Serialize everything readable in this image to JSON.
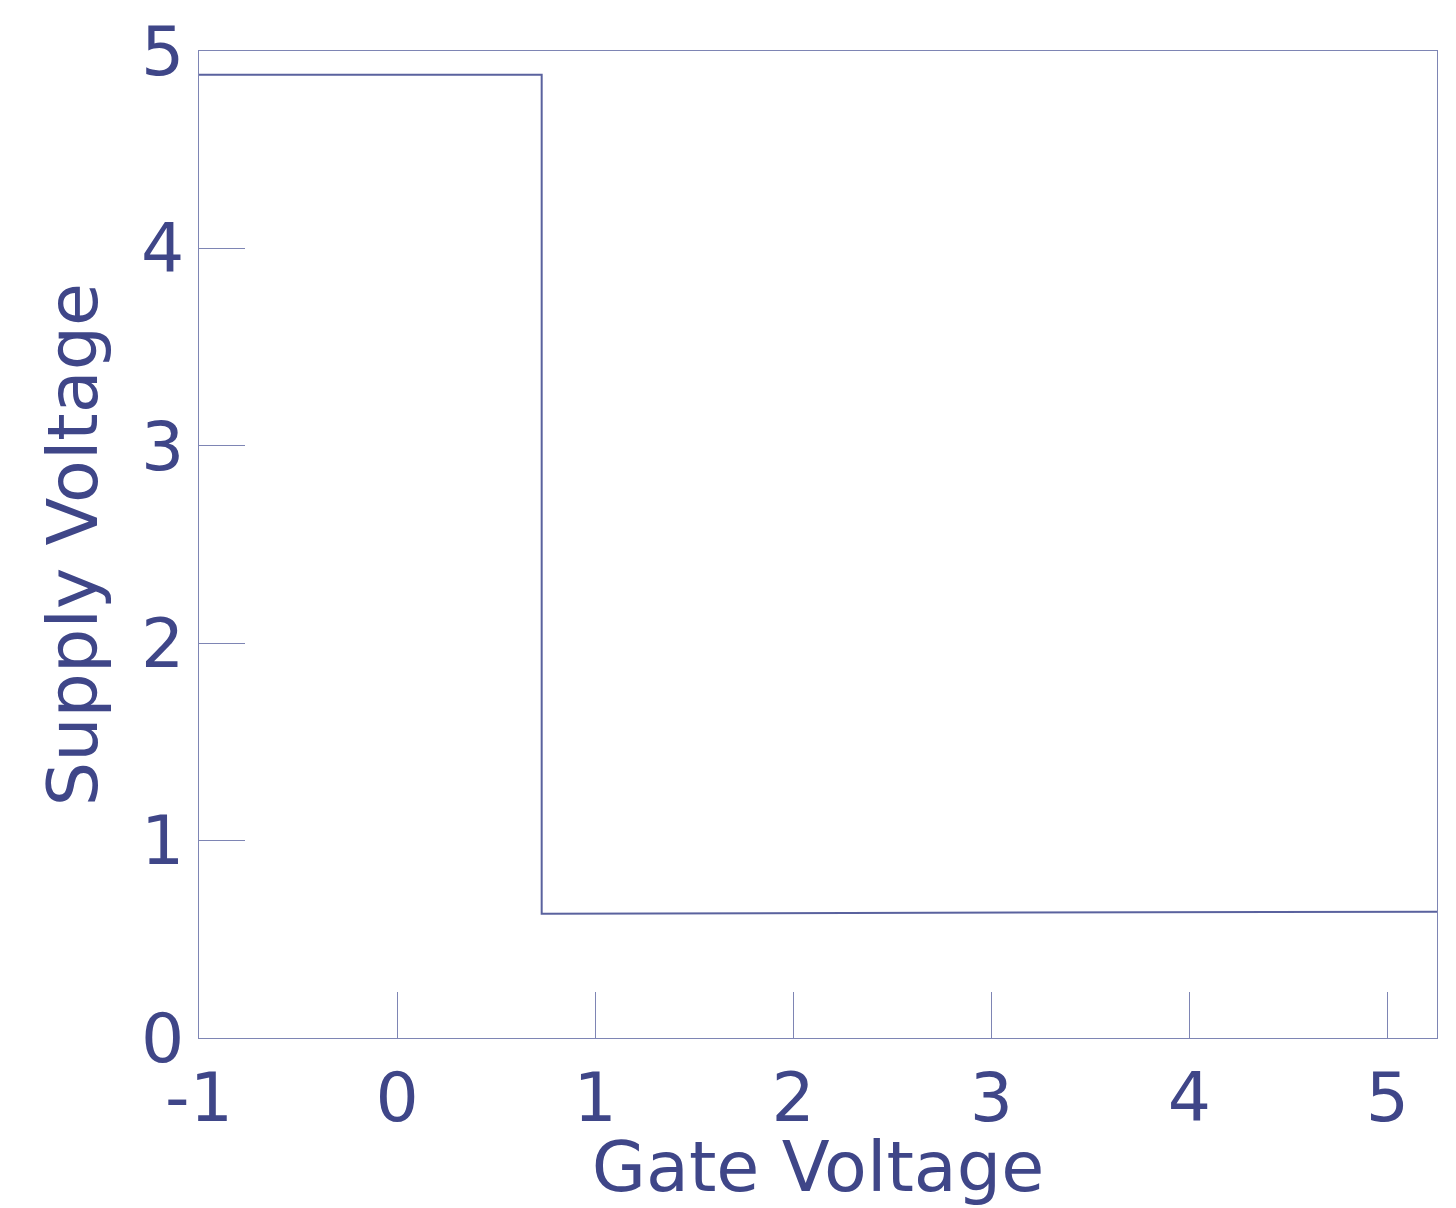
{
  "chart_data": {
    "type": "line",
    "x_label": "Gate Voltage",
    "y_label": "Supply Voltage",
    "x": [
      -1,
      0.73,
      0.73,
      5.25
    ],
    "values": [
      4.88,
      4.88,
      0.63,
      0.64
    ],
    "color": "#5a629e",
    "xlim": [
      -1,
      5.25
    ],
    "xticks": [
      -1,
      0,
      1,
      2,
      3,
      4,
      5
    ],
    "ylim": [
      0,
      5.0
    ],
    "yticks": [
      0,
      1,
      2,
      3,
      4,
      5
    ],
    "grid": false
  }
}
